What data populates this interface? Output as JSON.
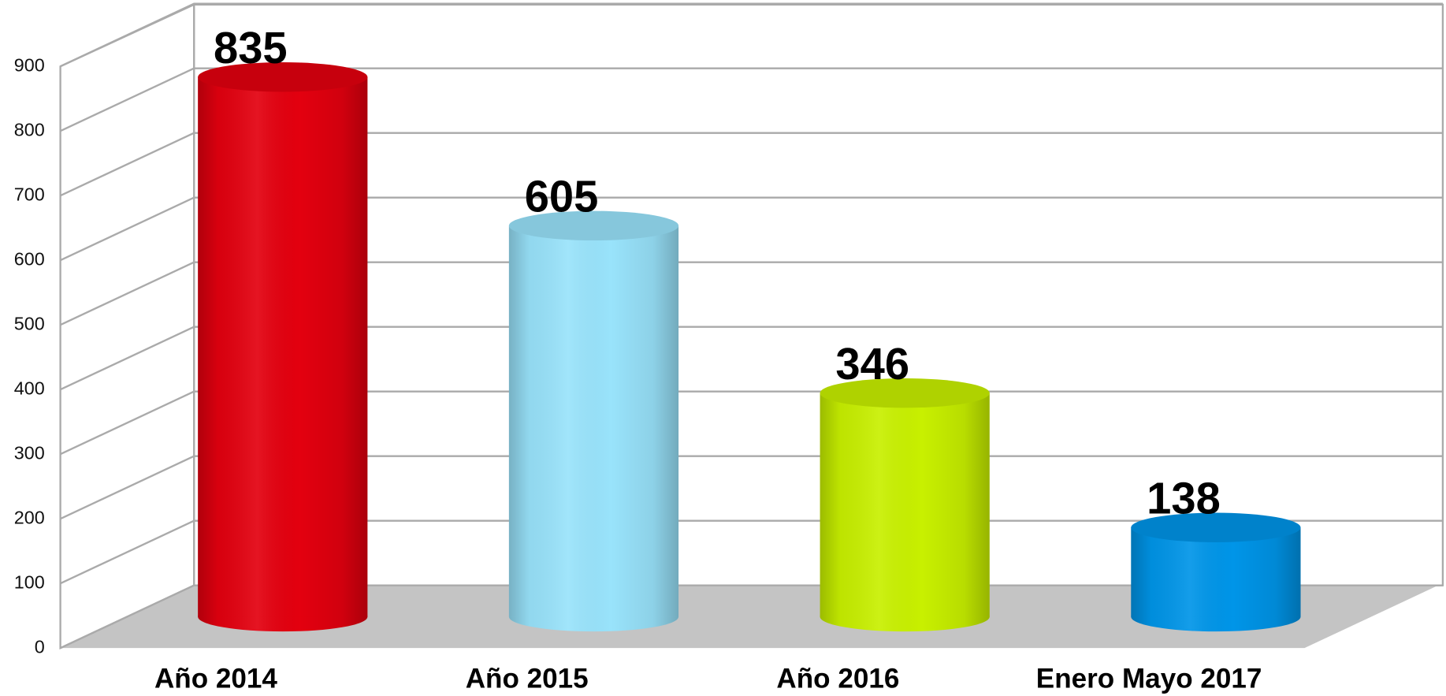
{
  "chart_data": {
    "type": "bar3d",
    "categories": [
      "Año 2014",
      "Año 2015",
      "Año 2016",
      "Enero Mayo 2017"
    ],
    "values": [
      835,
      605,
      346,
      138
    ],
    "colors": [
      "#e3000f",
      "#99e3fb",
      "#c8f000",
      "#0095e8"
    ],
    "ylim": [
      0,
      900
    ],
    "yticks": [
      0,
      100,
      200,
      300,
      400,
      500,
      600,
      700,
      800,
      900
    ],
    "grid": true
  }
}
